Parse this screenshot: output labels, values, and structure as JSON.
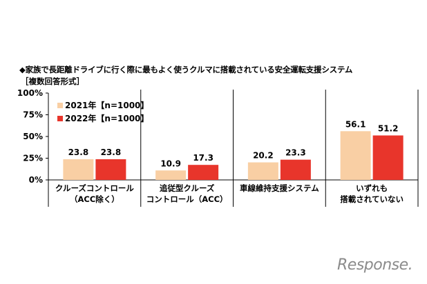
{
  "chart_data": {
    "type": "bar",
    "title": "◆家族で長距離ドライブに行く際に最もよく使うクルマに搭載されている安全運転支援システム",
    "subtitle": "［複数回答形式］",
    "categories": [
      [
        "クルーズコントロール",
        "（ACC除く）"
      ],
      [
        "追従型クルーズ",
        "コントロール（ACC）"
      ],
      [
        "車線維持支援システム"
      ],
      [
        "いずれも",
        "搭載されていない"
      ]
    ],
    "series": [
      {
        "name": "2021年【n=1000】",
        "color": "#F9CFA4",
        "values": [
          23.8,
          10.9,
          20.2,
          56.1
        ]
      },
      {
        "name": "2022年【n=1000】",
        "color": "#E8352B",
        "values": [
          23.8,
          17.3,
          23.3,
          51.2
        ]
      }
    ],
    "value_labels": [
      [
        "23.8",
        "10.9",
        "20.2",
        "56.1"
      ],
      [
        "23.8",
        "17.3",
        "23.3",
        "51.2"
      ]
    ],
    "yticks": [
      "0%",
      "25%",
      "50%",
      "75%",
      "100%"
    ],
    "ylim": [
      0,
      100
    ],
    "grid": false,
    "legend_position": "top-left"
  },
  "watermark": "Response."
}
